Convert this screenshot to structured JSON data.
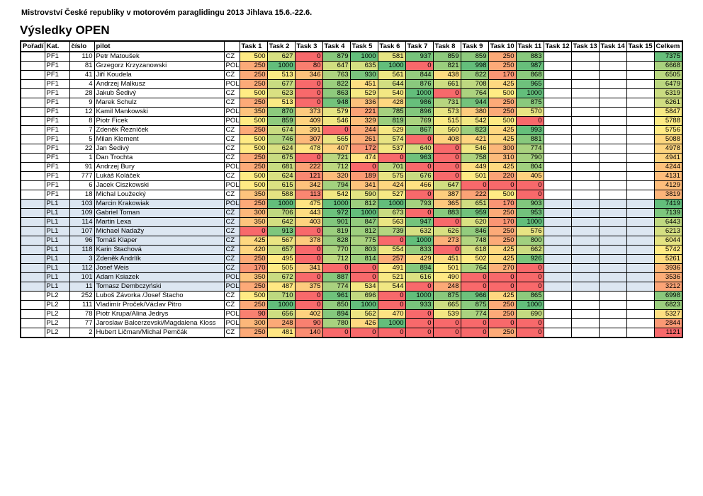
{
  "page": {
    "title": "Mistrovství České republiky v motorovém paraglidingu 2013 Jihlava 15.6.-22.6.",
    "heading": "Výsledky OPEN"
  },
  "colors": {
    "task_scale": {
      "min_color": "#F8696B",
      "mid_color": "#FFEB84",
      "max_color": "#63BE7B",
      "min": 0,
      "mid": 500,
      "max": 1000
    },
    "celkem_scale": {
      "min_color": "#F8696B",
      "mid_color": "#FFEB84",
      "max_color": "#63BE7B",
      "min": 1121,
      "mid": 5756,
      "max": 7419
    },
    "pl1_row_bg": "#DCE6F1",
    "default_row_bg": "#FFFFFF",
    "grid_border": "#000000"
  },
  "table": {
    "columns": [
      "Pořadí",
      "Kat.",
      "číslo",
      "pilot",
      "",
      "Task 1",
      "Task 2",
      "Task 3",
      "Task 4",
      "Task 5",
      "Task 6",
      "Task 7",
      "Task 8",
      "Task 9",
      "Task 10",
      "Task 11",
      "Task 12",
      "Task 13",
      "Task 14",
      "Task 15",
      "Celkem"
    ],
    "task_column_count": 15,
    "rows": [
      {
        "poradi": "",
        "kat": "PF1",
        "cislo": "110",
        "pilot": "Petr Matoušek",
        "country": "CZ",
        "tasks": [
          500,
          627,
          0,
          879,
          1000,
          581,
          937,
          859,
          859,
          250,
          883
        ],
        "celkem": 7375
      },
      {
        "poradi": "",
        "kat": "PF1",
        "cislo": "81",
        "pilot": "Grzegorz Krzyzanowski",
        "country": "POL",
        "tasks": [
          250,
          1000,
          80,
          647,
          635,
          1000,
          0,
          821,
          998,
          250,
          987
        ],
        "celkem": 6668
      },
      {
        "poradi": "",
        "kat": "PF1",
        "cislo": "41",
        "pilot": "Jiří Koudela",
        "country": "CZ",
        "tasks": [
          250,
          513,
          346,
          763,
          930,
          561,
          844,
          438,
          822,
          170,
          868
        ],
        "celkem": 6505
      },
      {
        "poradi": "",
        "kat": "PF1",
        "cislo": "4",
        "pilot": "Andrzej Malkusz",
        "country": "POL",
        "tasks": [
          250,
          677,
          0,
          822,
          451,
          644,
          876,
          661,
          708,
          425,
          965
        ],
        "celkem": 6479
      },
      {
        "poradi": "",
        "kat": "PF1",
        "cislo": "28",
        "pilot": "Jakub Šedivý",
        "country": "CZ",
        "tasks": [
          500,
          623,
          0,
          863,
          529,
          540,
          1000,
          0,
          764,
          500,
          1000
        ],
        "celkem": 6319
      },
      {
        "poradi": "",
        "kat": "PF1",
        "cislo": "9",
        "pilot": "Marek Schulz",
        "country": "CZ",
        "tasks": [
          250,
          513,
          0,
          948,
          336,
          428,
          986,
          731,
          944,
          250,
          875
        ],
        "celkem": 6261
      },
      {
        "poradi": "",
        "kat": "PF1",
        "cislo": "12",
        "pilot": "Kamil Mankowski",
        "country": "POL",
        "tasks": [
          350,
          870,
          373,
          579,
          221,
          785,
          896,
          573,
          380,
          250,
          570
        ],
        "celkem": 5847
      },
      {
        "poradi": "",
        "kat": "PF1",
        "cislo": "8",
        "pilot": "Piotr Ficek",
        "country": "POL",
        "tasks": [
          500,
          859,
          409,
          546,
          329,
          819,
          769,
          515,
          542,
          500,
          0
        ],
        "celkem": 5788
      },
      {
        "poradi": "",
        "kat": "PF1",
        "cislo": "7",
        "pilot": "Zdeněk Řezníček",
        "country": "CZ",
        "tasks": [
          250,
          674,
          391,
          0,
          244,
          529,
          867,
          560,
          823,
          425,
          993
        ],
        "celkem": 5756
      },
      {
        "poradi": "",
        "kat": "PF1",
        "cislo": "5",
        "pilot": "Milan Klement",
        "country": "CZ",
        "tasks": [
          500,
          746,
          307,
          565,
          261,
          574,
          0,
          408,
          421,
          425,
          881
        ],
        "celkem": 5088
      },
      {
        "poradi": "",
        "kat": "PF1",
        "cislo": "22",
        "pilot": "Jan Šedivý",
        "country": "CZ",
        "tasks": [
          500,
          624,
          478,
          407,
          172,
          537,
          640,
          0,
          546,
          300,
          774
        ],
        "celkem": 4978
      },
      {
        "poradi": "",
        "kat": "PF1",
        "cislo": "1",
        "pilot": "Dan Trochta",
        "country": "CZ",
        "tasks": [
          250,
          675,
          0,
          721,
          474,
          0,
          963,
          0,
          758,
          310,
          790
        ],
        "celkem": 4941
      },
      {
        "poradi": "",
        "kat": "PF1",
        "cislo": "91",
        "pilot": "Andrzej Bury",
        "country": "POL",
        "tasks": [
          250,
          681,
          222,
          712,
          0,
          701,
          0,
          0,
          449,
          425,
          804
        ],
        "celkem": 4244
      },
      {
        "poradi": "",
        "kat": "PF1",
        "cislo": "777",
        "pilot": "Lukáš Koláček",
        "country": "CZ",
        "tasks": [
          500,
          624,
          121,
          320,
          189,
          575,
          676,
          0,
          501,
          220,
          405
        ],
        "celkem": 4131
      },
      {
        "poradi": "",
        "kat": "PF1",
        "cislo": "6",
        "pilot": "Jacek Ciszkowski",
        "country": "POL",
        "tasks": [
          500,
          615,
          342,
          794,
          341,
          424,
          466,
          647,
          0,
          0,
          0
        ],
        "celkem": 4129
      },
      {
        "poradi": "",
        "kat": "PF1",
        "cislo": "18",
        "pilot": "Michal Loužecký",
        "country": "CZ",
        "tasks": [
          350,
          588,
          113,
          542,
          590,
          527,
          0,
          387,
          222,
          500,
          0
        ],
        "celkem": 3819
      },
      {
        "poradi": "",
        "kat": "PL1",
        "cislo": "103",
        "pilot": "Marcin Krakowiak",
        "country": "POL",
        "tasks": [
          250,
          1000,
          475,
          1000,
          812,
          1000,
          793,
          365,
          651,
          170,
          903
        ],
        "celkem": 7419
      },
      {
        "poradi": "",
        "kat": "PL1",
        "cislo": "109",
        "pilot": "Gabriel Toman",
        "country": "CZ",
        "tasks": [
          300,
          706,
          443,
          972,
          1000,
          673,
          0,
          883,
          959,
          250,
          953
        ],
        "celkem": 7139
      },
      {
        "poradi": "",
        "kat": "PL1",
        "cislo": "114",
        "pilot": "Martin Lexa",
        "country": "CZ",
        "tasks": [
          350,
          642,
          403,
          901,
          847,
          563,
          947,
          0,
          620,
          170,
          1000
        ],
        "celkem": 6443
      },
      {
        "poradi": "",
        "kat": "PL1",
        "cislo": "107",
        "pilot": "Michael Nadažy",
        "country": "CZ",
        "tasks": [
          0,
          913,
          0,
          819,
          812,
          739,
          632,
          626,
          846,
          250,
          576
        ],
        "celkem": 6213
      },
      {
        "poradi": "",
        "kat": "PL1",
        "cislo": "96",
        "pilot": "Tomáš Klaper",
        "country": "CZ",
        "tasks": [
          425,
          567,
          378,
          828,
          775,
          0,
          1000,
          273,
          748,
          250,
          800
        ],
        "celkem": 6044
      },
      {
        "poradi": "",
        "kat": "PL1",
        "cislo": "118",
        "pilot": "Karin Stachová",
        "country": "CZ",
        "tasks": [
          420,
          657,
          0,
          770,
          803,
          554,
          833,
          0,
          618,
          425,
          662
        ],
        "celkem": 5742
      },
      {
        "poradi": "",
        "kat": "PL1",
        "cislo": "3",
        "pilot": "Zdeněk Andrlík",
        "country": "CZ",
        "tasks": [
          250,
          495,
          0,
          712,
          814,
          257,
          429,
          451,
          502,
          425,
          926
        ],
        "celkem": 5261
      },
      {
        "poradi": "",
        "kat": "PL1",
        "cislo": "112",
        "pilot": "Josef Weis",
        "country": "CZ",
        "tasks": [
          170,
          505,
          341,
          0,
          0,
          491,
          894,
          501,
          764,
          270,
          0
        ],
        "celkem": 3936
      },
      {
        "poradi": "",
        "kat": "PL1",
        "cislo": "101",
        "pilot": "Adam Ksiazek",
        "country": "POL",
        "tasks": [
          350,
          672,
          0,
          887,
          0,
          521,
          616,
          490,
          0,
          0,
          0
        ],
        "celkem": 3536
      },
      {
        "poradi": "",
        "kat": "PL1",
        "cislo": "11",
        "pilot": "Tomasz Dembczyński",
        "country": "POL",
        "tasks": [
          250,
          487,
          375,
          774,
          534,
          544,
          0,
          248,
          0,
          0,
          0
        ],
        "celkem": 3212
      },
      {
        "poradi": "",
        "kat": "PL2",
        "cislo": "252",
        "pilot": "Luboš Závorka /Josef Stacho",
        "country": "CZ",
        "tasks": [
          500,
          710,
          0,
          961,
          696,
          0,
          1000,
          875,
          966,
          425,
          865
        ],
        "celkem": 6998
      },
      {
        "poradi": "",
        "kat": "PL2",
        "cislo": "111",
        "pilot": "Vladimír Proček/Václav Pitro",
        "country": "CZ",
        "tasks": [
          250,
          1000,
          0,
          850,
          1000,
          0,
          933,
          665,
          875,
          250,
          1000
        ],
        "celkem": 6823
      },
      {
        "poradi": "",
        "kat": "PL2",
        "cislo": "78",
        "pilot": "Piotr Krupa/Alina Jedrys",
        "country": "POL",
        "tasks": [
          90,
          656,
          402,
          894,
          562,
          470,
          0,
          539,
          774,
          250,
          690
        ],
        "celkem": 5327
      },
      {
        "poradi": "",
        "kat": "PL2",
        "cislo": "77",
        "pilot": "Jaroslaw Balcerzevski/Magdalena Kloss",
        "country": "POL",
        "tasks": [
          300,
          248,
          90,
          780,
          426,
          1000,
          0,
          0,
          0,
          0,
          0
        ],
        "celkem": 2844
      },
      {
        "poradi": "",
        "kat": "PL2",
        "cislo": "2",
        "pilot": "Hubert Ličman/Michal Pemčák",
        "country": "CZ",
        "tasks": [
          250,
          481,
          140,
          0,
          0,
          0,
          0,
          0,
          0,
          250,
          0
        ],
        "celkem": 1121
      }
    ]
  }
}
